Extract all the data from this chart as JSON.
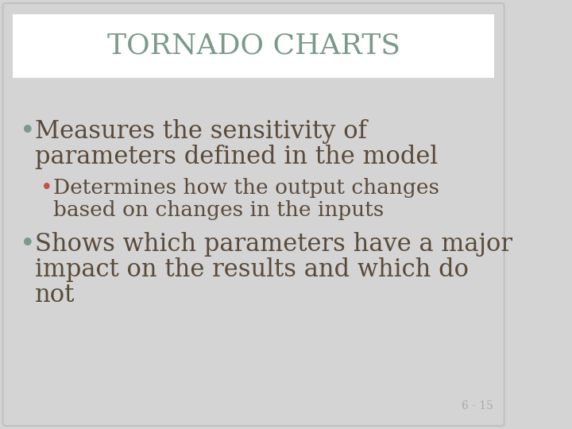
{
  "title": "TORNADO CHARTS",
  "title_color": "#7a9a8a",
  "title_fontsize": 26,
  "background_color": "#d4d4d4",
  "slide_border_color": "#c0c0c0",
  "header_bg_color": "#ffffff",
  "body_text_color": "#5a4a3a",
  "bullet1_bullet_color": "#7a9a8a",
  "bullet2_bullet_color": "#c0534a",
  "bullet3_bullet_color": "#7a9a8a",
  "page_number": "6 - 15",
  "page_number_color": "#aaaaaa",
  "page_number_fontsize": 10,
  "bullet1_line1": "Measures the sensitivity of",
  "bullet1_line2": "parameters defined in the model",
  "bullet2_line1": "Determines how the output changes",
  "bullet2_line2": "based on changes in the inputs",
  "bullet3_line1": "Shows which parameters have a major",
  "bullet3_line2": "impact on the results and which do",
  "bullet3_line3": "not",
  "body_fontsize": 22,
  "sub_fontsize": 19
}
